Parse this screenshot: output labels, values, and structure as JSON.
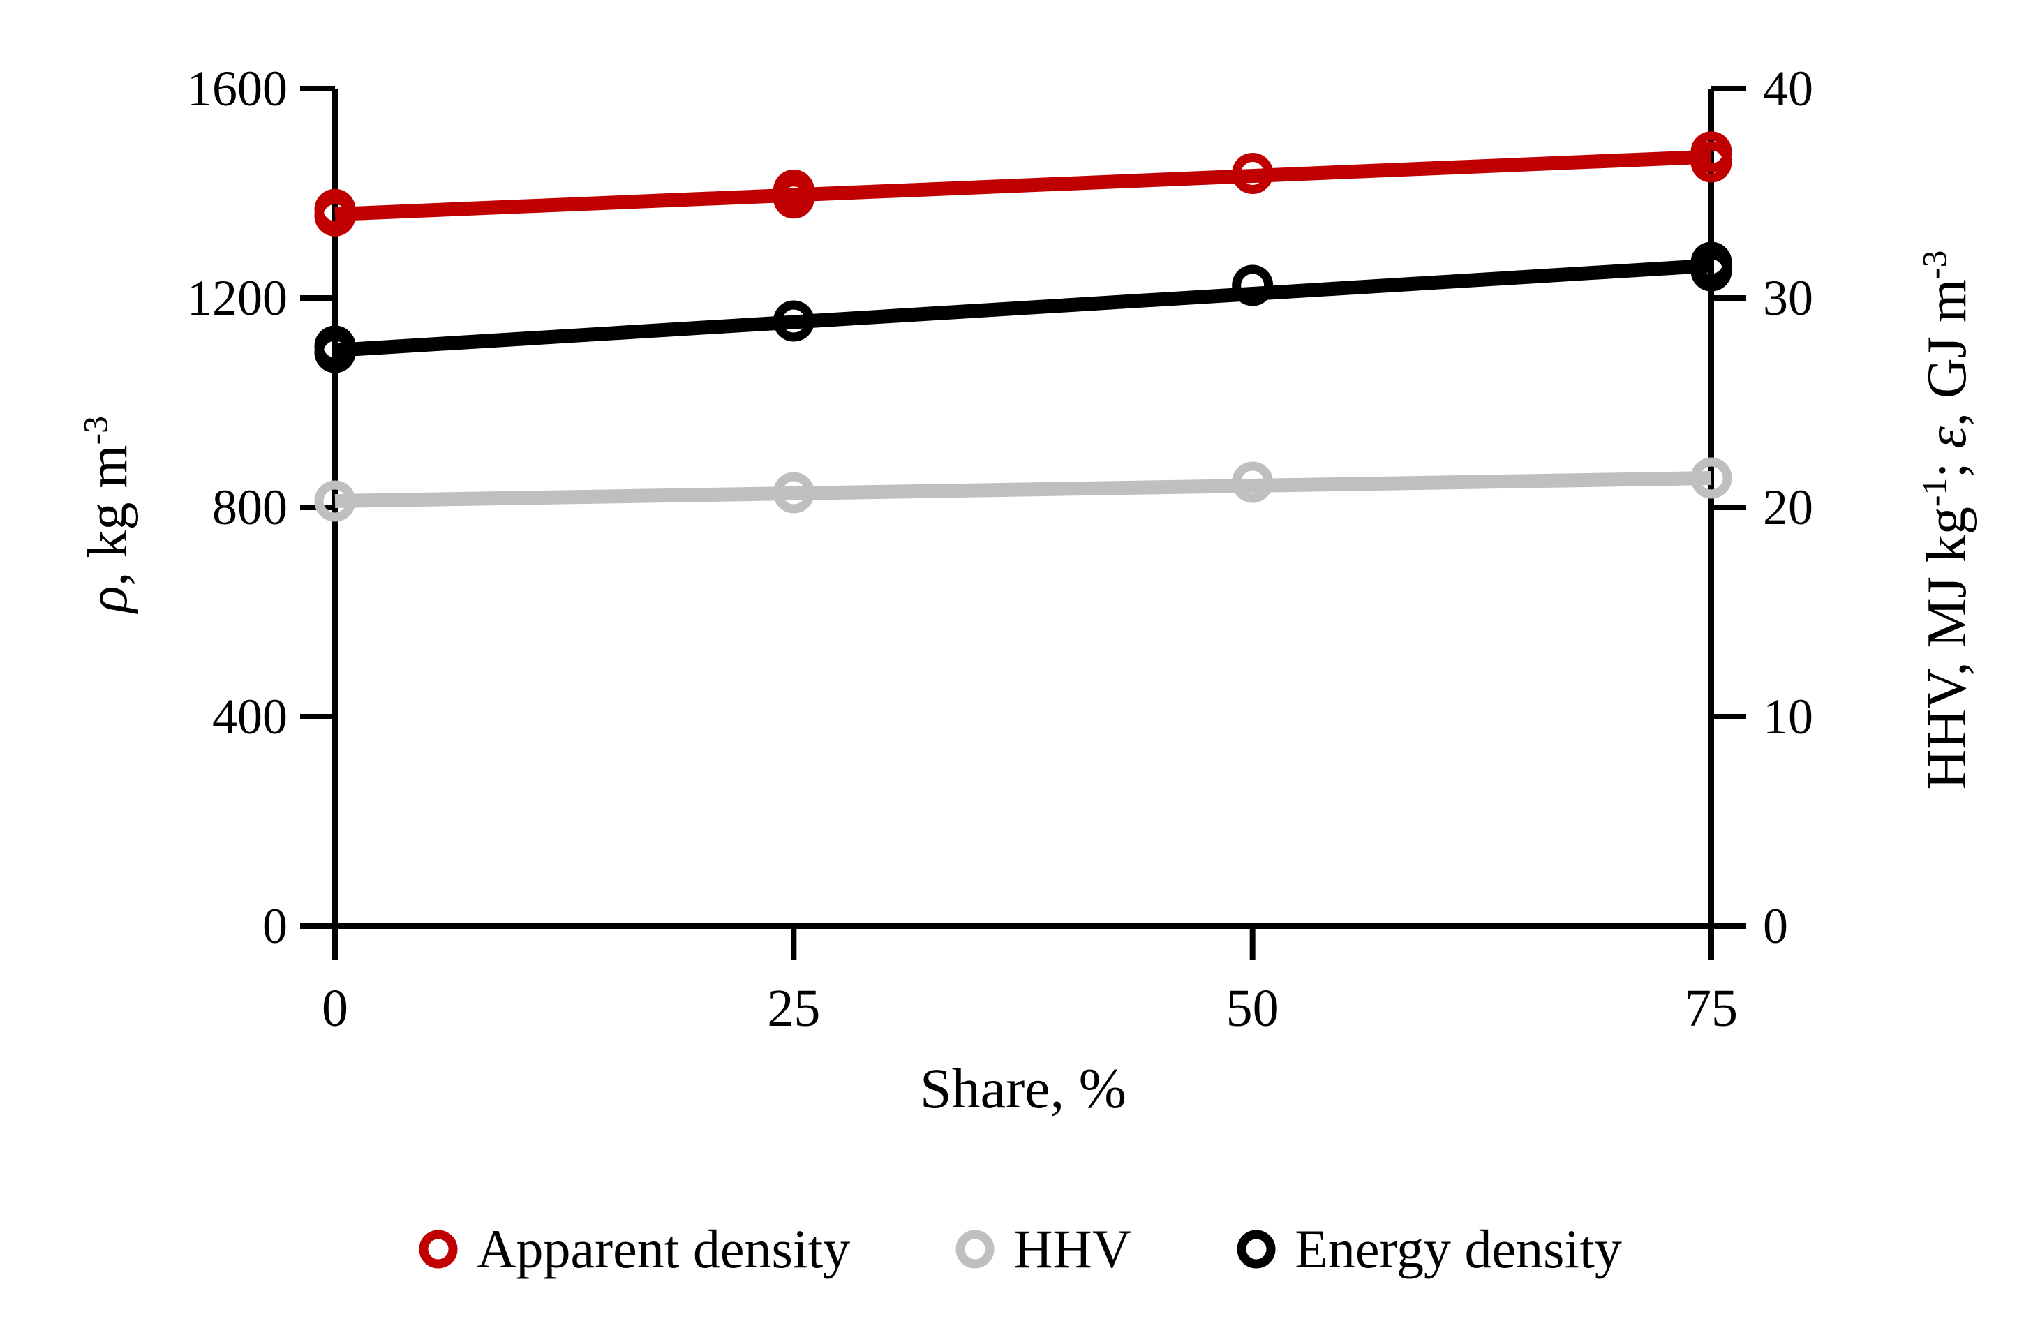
{
  "figure": {
    "background": "#ffffff"
  },
  "labels": {
    "left": {
      "sym": "ρ",
      "mid": ", kg m",
      "sup": "-3"
    },
    "right": {
      "a": "HHV, MJ kg",
      "b": "-1",
      "c": "; ",
      "d": "ε",
      "e": ", GJ m",
      "f": "-3"
    }
  },
  "chart_data": {
    "type": "scatter",
    "xlabel": "Share, %",
    "ylabel_left": "ρ, kg m-3",
    "ylabel_right": "HHV, MJ kg-1; ε, GJ m-3",
    "x_axis": {
      "min": 0,
      "max": 75,
      "ticks": [
        0,
        25,
        50,
        75
      ]
    },
    "left_axis": {
      "min": 0,
      "max": 1600,
      "ticks": [
        0,
        400,
        800,
        1200,
        1600
      ]
    },
    "right_axis": {
      "min": 0,
      "max": 40,
      "ticks": [
        0,
        10,
        20,
        30,
        40
      ]
    },
    "grid": false,
    "legend_position": "bottom",
    "series": [
      {
        "name": "Apparent density",
        "color": "#c00000",
        "axis": "left",
        "marker": "open-circle",
        "points": [
          {
            "x": 0,
            "y": 1357
          },
          {
            "x": 0,
            "y": 1369
          },
          {
            "x": 25,
            "y": 1391
          },
          {
            "x": 25,
            "y": 1406
          },
          {
            "x": 50,
            "y": 1438
          },
          {
            "x": 75,
            "y": 1460
          },
          {
            "x": 75,
            "y": 1479
          }
        ],
        "trend": {
          "x0": 0,
          "y0": 1360,
          "x1": 75,
          "y1": 1470
        }
      },
      {
        "name": "HHV",
        "color": "#bfbfbf",
        "axis": "right",
        "marker": "open-circle",
        "points": [
          {
            "x": 0,
            "y": 20.3
          },
          {
            "x": 25,
            "y": 20.7
          },
          {
            "x": 50,
            "y": 21.2
          },
          {
            "x": 75,
            "y": 21.4
          }
        ],
        "trend": {
          "x0": 0,
          "y0": 20.3,
          "x1": 75,
          "y1": 21.4
        }
      },
      {
        "name": "Energy density",
        "color": "#000000",
        "axis": "right",
        "marker": "open-circle",
        "points": [
          {
            "x": 0,
            "y": 27.4
          },
          {
            "x": 0,
            "y": 27.7
          },
          {
            "x": 25,
            "y": 28.9
          },
          {
            "x": 50,
            "y": 30.6
          },
          {
            "x": 75,
            "y": 31.3
          },
          {
            "x": 75,
            "y": 31.7
          }
        ],
        "trend": {
          "x0": 0,
          "y0": 27.5,
          "x1": 75,
          "y1": 31.55
        }
      }
    ]
  }
}
